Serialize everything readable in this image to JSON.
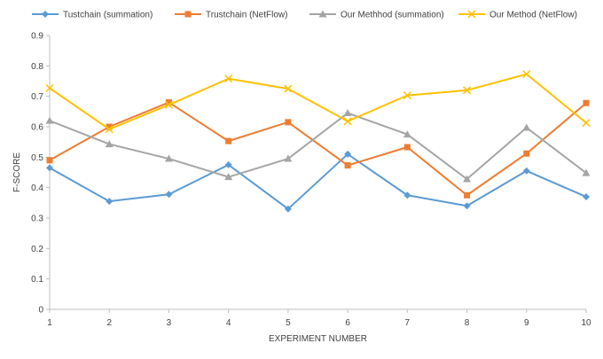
{
  "chart_data": {
    "type": "line",
    "title": "",
    "xlabel": "EXPERIMENT NUMBER",
    "ylabel": "F-SCORE",
    "x": [
      1,
      2,
      3,
      4,
      5,
      6,
      7,
      8,
      9,
      10
    ],
    "ylim": [
      0,
      0.9
    ],
    "yticks": [
      "0",
      "0.1",
      "0.2",
      "0.3",
      "0.4",
      "0.5",
      "0.6",
      "0.7",
      "0.8",
      "0.9"
    ],
    "grid": false,
    "legend_position": "top",
    "series": [
      {
        "name": "Tustchain (summation)",
        "color": "#5b9bd5",
        "marker": "diamond",
        "values": [
          0.465,
          0.355,
          0.378,
          0.475,
          0.33,
          0.51,
          0.375,
          0.34,
          0.455,
          0.37
        ]
      },
      {
        "name": "Trustchain (NetFlow)",
        "color": "#ed7d31",
        "marker": "square",
        "values": [
          0.49,
          0.6,
          0.68,
          0.553,
          0.615,
          0.473,
          0.533,
          0.375,
          0.512,
          0.678
        ]
      },
      {
        "name": "Our Methhod (summation)",
        "color": "#a5a5a5",
        "marker": "triangle",
        "values": [
          0.62,
          0.543,
          0.495,
          0.435,
          0.495,
          0.645,
          0.575,
          0.428,
          0.597,
          0.448
        ]
      },
      {
        "name": "Our Method (NetFlow)",
        "color": "#ffc000",
        "marker": "x",
        "values": [
          0.727,
          0.592,
          0.672,
          0.758,
          0.725,
          0.618,
          0.703,
          0.72,
          0.773,
          0.613
        ]
      }
    ]
  }
}
